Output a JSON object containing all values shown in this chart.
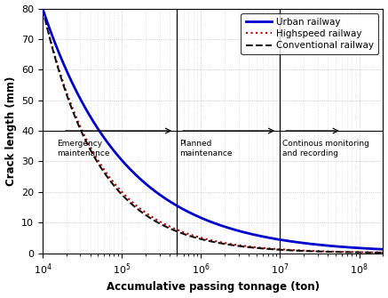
{
  "title": "",
  "xlabel": "Accumulative passing tonnage (ton)",
  "ylabel": "Crack length (mm)",
  "xlim_log": [
    10000.0,
    200000000.0
  ],
  "ylim": [
    0,
    80
  ],
  "yticks": [
    0,
    10,
    20,
    30,
    40,
    50,
    60,
    70,
    80
  ],
  "vline1_x": 500000.0,
  "vline2_x": 10000000.0,
  "hline_y": 40,
  "urban_color": "#0000cc",
  "highspeed_color": "#cc0000",
  "conventional_color": "#111111",
  "annotation1": "Emergency\nmaintenance",
  "annotation2": "Planned\nmaintenance",
  "annotation3": "Continous monitoring\nand recording",
  "legend_urban": "Urban railway",
  "legend_highspeed": "Highspeed railway",
  "legend_conventional": "Conventional railway",
  "background_color": "#ffffff",
  "grid_color": "#999999",
  "urban_A": 80,
  "urban_xref": 10000.0,
  "urban_alpha": 0.42,
  "hs_A": 80,
  "hs_xref": 10000.0,
  "hs_alpha": 0.6,
  "conv_A": 80,
  "conv_xref": 10000.0,
  "conv_alpha": 0.62
}
